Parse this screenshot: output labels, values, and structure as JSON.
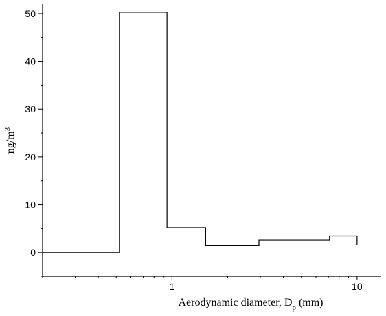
{
  "chart_data": {
    "type": "line",
    "title": "",
    "xlabel": "Aerodynamic diameter, D",
    "xlabel_subscript": "p",
    "xlabel_suffix": " (mm)",
    "ylabel": "ng/m",
    "ylabel_superscript": "3",
    "x_scale": "log",
    "xlim": [
      0.2,
      13.5
    ],
    "ylim": [
      -5,
      52
    ],
    "x_ticks": [
      1,
      10
    ],
    "x_tick_labels": [
      "1",
      "10"
    ],
    "y_ticks": [
      0,
      10,
      20,
      30,
      40,
      50
    ],
    "y_tick_labels": [
      "0",
      "10",
      "20",
      "30",
      "40",
      "50"
    ],
    "grid": false,
    "legend": "none",
    "series": [
      {
        "line_style": "step",
        "bins": [
          {
            "x_start": 0.2,
            "x_end": 0.52,
            "value": 0
          },
          {
            "x_start": 0.52,
            "x_end": 0.94,
            "value": 50.3
          },
          {
            "x_start": 0.94,
            "x_end": 1.52,
            "value": 5.2
          },
          {
            "x_start": 1.52,
            "x_end": 2.95,
            "value": 1.4
          },
          {
            "x_start": 2.95,
            "x_end": 7.1,
            "value": 2.6
          },
          {
            "x_start": 7.1,
            "x_end": 10.0,
            "value": 3.4
          }
        ],
        "final_drop_to": 1.6
      }
    ]
  }
}
